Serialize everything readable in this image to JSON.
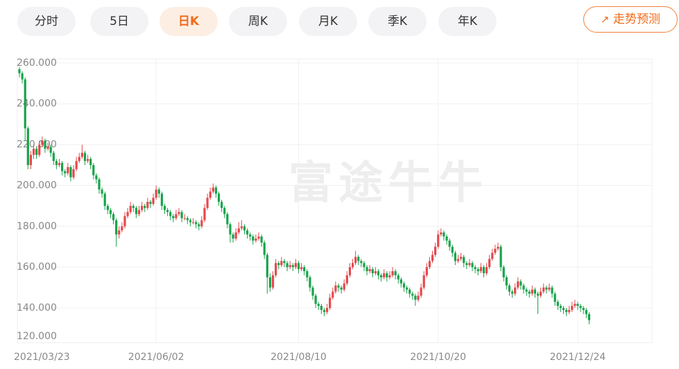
{
  "tabs": [
    "分时",
    "5日",
    "日K",
    "周K",
    "月K",
    "季K",
    "年K"
  ],
  "active_tab": 2,
  "predict_button": "走势预测",
  "watermark": "富途牛牛",
  "chart_data": {
    "type": "candlestick",
    "up_color": "#e5484d",
    "down_color": "#16a34a",
    "grid": true,
    "ylim": [
      123,
      262
    ],
    "yticks": [
      {
        "value": 120,
        "label": "120.000"
      },
      {
        "value": 140,
        "label": "140.000"
      },
      {
        "value": 160,
        "label": "160.000"
      },
      {
        "value": 180,
        "label": "180.000"
      },
      {
        "value": 200,
        "label": "200.000"
      },
      {
        "value": 220,
        "label": "220.000"
      },
      {
        "value": 240,
        "label": "240.000"
      },
      {
        "value": 260,
        "label": "260.000"
      }
    ],
    "categories": [
      "2021/03/23",
      null,
      null,
      null,
      null,
      null,
      null,
      null,
      null,
      null,
      null,
      null,
      null,
      null,
      null,
      null,
      null,
      null,
      null,
      null,
      null,
      null,
      null,
      null,
      null,
      null,
      null,
      null,
      null,
      null,
      null,
      null,
      null,
      null,
      null,
      null,
      null,
      null,
      null,
      null,
      null,
      null,
      null,
      null,
      null,
      null,
      null,
      null,
      "2021/06/02",
      null,
      null,
      null,
      null,
      null,
      null,
      null,
      null,
      null,
      null,
      null,
      null,
      null,
      null,
      null,
      null,
      null,
      null,
      null,
      null,
      null,
      null,
      null,
      null,
      null,
      null,
      null,
      null,
      null,
      null,
      null,
      null,
      null,
      null,
      null,
      null,
      null,
      null,
      null,
      null,
      null,
      null,
      null,
      null,
      null,
      null,
      null,
      null,
      null,
      "2021/08/10",
      null,
      null,
      null,
      null,
      null,
      null,
      null,
      null,
      null,
      null,
      null,
      null,
      null,
      null,
      null,
      null,
      null,
      null,
      null,
      null,
      null,
      null,
      null,
      null,
      null,
      null,
      null,
      null,
      null,
      null,
      null,
      null,
      null,
      null,
      null,
      null,
      null,
      null,
      null,
      null,
      null,
      null,
      null,
      null,
      null,
      null,
      null,
      null,
      "2021/10/20",
      null,
      null,
      null,
      null,
      null,
      null,
      null,
      null,
      null,
      null,
      null,
      null,
      null,
      null,
      null,
      null,
      null,
      null,
      null,
      null,
      null,
      null,
      null,
      null,
      null,
      null,
      null,
      null,
      null,
      null,
      null,
      null,
      null,
      null,
      null,
      null,
      null,
      null,
      null,
      null,
      null,
      null,
      null,
      null,
      null,
      null,
      null,
      null,
      "2021/12/24",
      null,
      null,
      null,
      null
    ],
    "ohlc": [
      [
        257,
        258,
        253,
        255
      ],
      [
        255,
        256,
        250,
        252
      ],
      [
        252,
        253,
        222,
        228
      ],
      [
        228,
        229,
        208,
        210
      ],
      [
        210,
        217,
        208,
        215
      ],
      [
        215,
        220,
        213,
        218
      ],
      [
        218,
        219,
        213,
        215
      ],
      [
        215,
        222,
        214,
        220
      ],
      [
        220,
        224,
        219,
        222
      ],
      [
        222,
        223,
        216,
        218
      ],
      [
        218,
        221,
        217,
        219
      ],
      [
        219,
        220,
        214,
        216
      ],
      [
        216,
        217,
        210,
        212
      ],
      [
        212,
        213,
        208,
        210
      ],
      [
        210,
        213,
        209,
        211
      ],
      [
        211,
        212,
        205,
        207
      ],
      [
        207,
        208,
        204,
        206
      ],
      [
        206,
        211,
        205,
        209
      ],
      [
        209,
        210,
        202,
        204
      ],
      [
        204,
        210,
        203,
        208
      ],
      [
        208,
        214,
        207,
        212
      ],
      [
        212,
        216,
        211,
        214
      ],
      [
        214,
        220,
        213,
        216
      ],
      [
        216,
        217,
        210,
        212
      ],
      [
        212,
        215,
        211,
        213
      ],
      [
        213,
        214,
        208,
        210
      ],
      [
        210,
        211,
        203,
        205
      ],
      [
        205,
        206,
        201,
        203
      ],
      [
        203,
        204,
        196,
        198
      ],
      [
        198,
        199,
        194,
        196
      ],
      [
        196,
        197,
        188,
        190
      ],
      [
        190,
        191,
        186,
        188
      ],
      [
        188,
        189,
        184,
        186
      ],
      [
        186,
        187,
        181,
        183
      ],
      [
        183,
        184,
        170,
        176
      ],
      [
        176,
        180,
        174,
        178
      ],
      [
        178,
        182,
        177,
        180
      ],
      [
        180,
        187,
        179,
        185
      ],
      [
        185,
        189,
        184,
        187
      ],
      [
        187,
        192,
        186,
        190
      ],
      [
        190,
        191,
        187,
        189
      ],
      [
        189,
        190,
        184,
        186
      ],
      [
        186,
        190,
        185,
        188
      ],
      [
        188,
        192,
        187,
        190
      ],
      [
        190,
        191,
        187,
        189
      ],
      [
        189,
        194,
        188,
        192
      ],
      [
        192,
        193,
        189,
        191
      ],
      [
        191,
        196,
        190,
        194
      ],
      [
        194,
        200,
        193,
        198
      ],
      [
        198,
        199,
        194,
        196
      ],
      [
        196,
        197,
        188,
        190
      ],
      [
        190,
        191,
        186,
        188
      ],
      [
        188,
        189,
        185,
        187
      ],
      [
        187,
        188,
        183,
        185
      ],
      [
        185,
        186,
        182,
        184
      ],
      [
        184,
        188,
        183,
        186
      ],
      [
        186,
        189,
        185,
        187
      ],
      [
        187,
        188,
        182,
        184
      ],
      [
        184,
        186,
        183,
        184
      ],
      [
        184,
        185,
        181,
        183
      ],
      [
        183,
        184,
        180,
        182
      ],
      [
        182,
        184,
        181,
        182
      ],
      [
        182,
        183,
        179,
        181
      ],
      [
        181,
        182,
        178,
        180
      ],
      [
        180,
        185,
        179,
        183
      ],
      [
        183,
        191,
        182,
        189
      ],
      [
        189,
        196,
        188,
        194
      ],
      [
        194,
        199,
        193,
        197
      ],
      [
        197,
        201,
        196,
        199
      ],
      [
        199,
        200,
        194,
        196
      ],
      [
        196,
        197,
        190,
        192
      ],
      [
        192,
        193,
        187,
        189
      ],
      [
        189,
        190,
        184,
        186
      ],
      [
        186,
        187,
        179,
        181
      ],
      [
        181,
        182,
        172,
        176
      ],
      [
        176,
        177,
        172,
        174
      ],
      [
        174,
        179,
        173,
        177
      ],
      [
        177,
        182,
        176,
        179
      ],
      [
        179,
        183,
        178,
        180
      ],
      [
        180,
        181,
        176,
        178
      ],
      [
        178,
        179,
        174,
        176
      ],
      [
        176,
        177,
        173,
        175
      ],
      [
        175,
        176,
        171,
        173
      ],
      [
        173,
        176,
        172,
        174
      ],
      [
        174,
        177,
        173,
        175
      ],
      [
        175,
        176,
        170,
        172
      ],
      [
        172,
        173,
        164,
        166
      ],
      [
        166,
        167,
        147,
        155
      ],
      [
        155,
        157,
        148,
        150
      ],
      [
        150,
        158,
        149,
        156
      ],
      [
        156,
        164,
        155,
        162
      ],
      [
        162,
        163,
        159,
        161
      ],
      [
        161,
        165,
        160,
        163
      ],
      [
        163,
        164,
        160,
        162
      ],
      [
        162,
        163,
        158,
        160
      ],
      [
        160,
        163,
        159,
        161
      ],
      [
        161,
        162,
        158,
        160
      ],
      [
        160,
        164,
        159,
        162
      ],
      [
        162,
        163,
        157,
        159
      ],
      [
        159,
        162,
        158,
        160
      ],
      [
        160,
        161,
        156,
        158
      ],
      [
        158,
        159,
        153,
        155
      ],
      [
        155,
        156,
        148,
        150
      ],
      [
        150,
        151,
        144,
        146
      ],
      [
        146,
        147,
        140,
        142
      ],
      [
        142,
        143,
        139,
        141
      ],
      [
        141,
        142,
        137,
        139
      ],
      [
        139,
        140,
        136,
        138
      ],
      [
        138,
        142,
        137,
        140
      ],
      [
        140,
        147,
        139,
        145
      ],
      [
        145,
        150,
        144,
        148
      ],
      [
        148,
        153,
        147,
        151
      ],
      [
        151,
        152,
        148,
        150
      ],
      [
        150,
        151,
        147,
        149
      ],
      [
        149,
        154,
        148,
        152
      ],
      [
        152,
        158,
        151,
        156
      ],
      [
        156,
        162,
        155,
        160
      ],
      [
        160,
        164,
        159,
        162
      ],
      [
        162,
        168,
        161,
        165
      ],
      [
        165,
        166,
        161,
        163
      ],
      [
        163,
        164,
        160,
        162
      ],
      [
        162,
        163,
        158,
        160
      ],
      [
        160,
        161,
        156,
        158
      ],
      [
        158,
        161,
        157,
        159
      ],
      [
        159,
        160,
        155,
        157
      ],
      [
        157,
        160,
        156,
        158
      ],
      [
        158,
        159,
        154,
        156
      ],
      [
        156,
        157,
        153,
        155
      ],
      [
        155,
        159,
        154,
        157
      ],
      [
        157,
        158,
        153,
        155
      ],
      [
        155,
        158,
        154,
        156
      ],
      [
        156,
        160,
        155,
        158
      ],
      [
        158,
        159,
        154,
        156
      ],
      [
        156,
        157,
        152,
        154
      ],
      [
        154,
        155,
        150,
        152
      ],
      [
        152,
        153,
        148,
        150
      ],
      [
        150,
        151,
        147,
        149
      ],
      [
        149,
        150,
        145,
        147
      ],
      [
        147,
        148,
        144,
        146
      ],
      [
        146,
        147,
        141,
        144
      ],
      [
        144,
        148,
        143,
        146
      ],
      [
        146,
        152,
        145,
        150
      ],
      [
        150,
        158,
        149,
        156
      ],
      [
        156,
        162,
        155,
        160
      ],
      [
        160,
        165,
        159,
        163
      ],
      [
        163,
        168,
        162,
        166
      ],
      [
        166,
        172,
        165,
        170
      ],
      [
        170,
        178,
        169,
        176
      ],
      [
        176,
        179,
        175,
        177
      ],
      [
        177,
        178,
        173,
        175
      ],
      [
        175,
        176,
        171,
        173
      ],
      [
        173,
        174,
        168,
        170
      ],
      [
        170,
        171,
        165,
        167
      ],
      [
        167,
        168,
        161,
        163
      ],
      [
        163,
        166,
        162,
        164
      ],
      [
        164,
        167,
        163,
        165
      ],
      [
        165,
        166,
        160,
        162
      ],
      [
        162,
        163,
        159,
        161
      ],
      [
        161,
        164,
        160,
        162
      ],
      [
        162,
        163,
        158,
        160
      ],
      [
        160,
        161,
        157,
        159
      ],
      [
        159,
        160,
        156,
        158
      ],
      [
        158,
        162,
        157,
        160
      ],
      [
        160,
        161,
        155,
        157
      ],
      [
        157,
        162,
        156,
        160
      ],
      [
        160,
        166,
        159,
        164
      ],
      [
        164,
        169,
        163,
        167
      ],
      [
        167,
        171,
        166,
        169
      ],
      [
        169,
        172,
        168,
        170
      ],
      [
        170,
        171,
        158,
        160
      ],
      [
        160,
        161,
        153,
        155
      ],
      [
        155,
        156,
        149,
        151
      ],
      [
        151,
        152,
        146,
        148
      ],
      [
        148,
        149,
        145,
        147
      ],
      [
        147,
        152,
        146,
        150
      ],
      [
        150,
        155,
        149,
        153
      ],
      [
        153,
        154,
        149,
        151
      ],
      [
        151,
        152,
        147,
        149
      ],
      [
        149,
        150,
        146,
        148
      ],
      [
        148,
        149,
        145,
        147
      ],
      [
        147,
        151,
        146,
        149
      ],
      [
        149,
        150,
        145,
        147
      ],
      [
        147,
        148,
        137,
        146
      ],
      [
        146,
        150,
        145,
        148
      ],
      [
        148,
        152,
        147,
        150
      ],
      [
        150,
        151,
        147,
        149
      ],
      [
        149,
        152,
        148,
        150
      ],
      [
        150,
        151,
        145,
        147
      ],
      [
        147,
        148,
        141,
        143
      ],
      [
        143,
        144,
        139,
        141
      ],
      [
        141,
        142,
        138,
        140
      ],
      [
        140,
        141,
        137,
        139
      ],
      [
        139,
        140,
        136,
        138
      ],
      [
        138,
        141,
        137,
        139
      ],
      [
        139,
        143,
        138,
        141
      ],
      [
        141,
        144,
        140,
        142
      ],
      [
        142,
        143,
        139,
        141
      ],
      [
        141,
        142,
        138,
        140
      ],
      [
        140,
        141,
        137,
        139
      ],
      [
        139,
        140,
        135,
        137
      ],
      [
        137,
        138,
        132,
        134
      ]
    ]
  }
}
